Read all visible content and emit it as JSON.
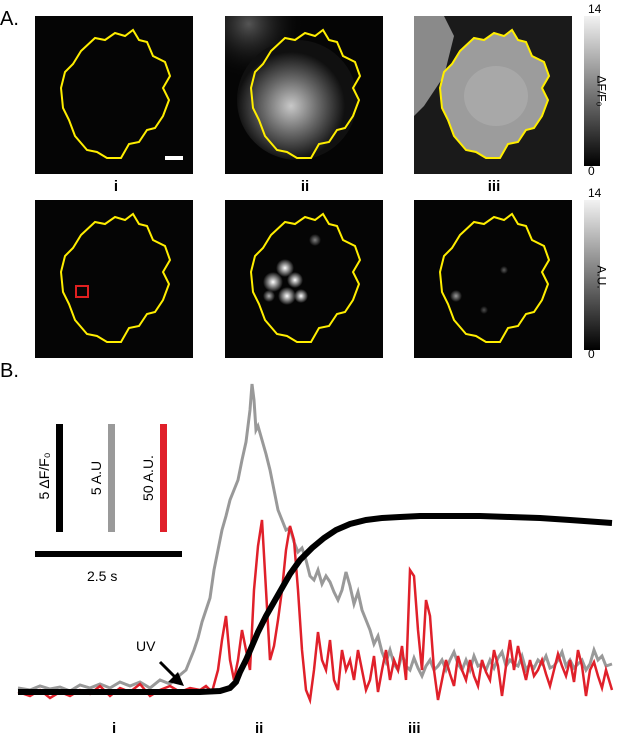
{
  "panel_a": {
    "letter": "A.",
    "labels": [
      "i",
      "ii",
      "iii"
    ],
    "colorbar_top": {
      "title": "ΔF/F₀",
      "max": "14",
      "min": "0"
    },
    "colorbar_bottom": {
      "title": "A.U.",
      "max": "14",
      "min": "0"
    },
    "colors": {
      "outline": "#ffee00",
      "roi_box": "#e02020",
      "background": "#050505"
    }
  },
  "panel_b": {
    "letter": "B.",
    "scale_bars": {
      "black_label": "5 ΔF/F₀",
      "gray_label": "5 A.U",
      "red_label": "50 A.U.",
      "time_label": "2.5 s"
    },
    "stimulus_label": "UV",
    "time_markers": [
      "i",
      "ii",
      "iii"
    ],
    "colors": {
      "black_trace": "#000000",
      "gray_trace": "#999999",
      "red_trace": "#e0202a"
    }
  }
}
